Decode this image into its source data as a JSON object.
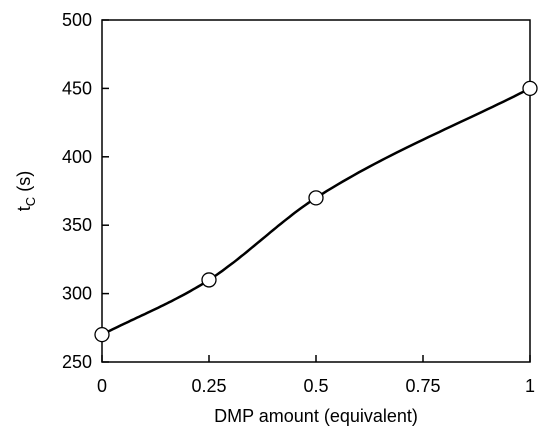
{
  "chart_data": {
    "type": "line",
    "title": "",
    "xlabel": "DMP amount (equivalent)",
    "ylabel_main": "t",
    "ylabel_sub": "C",
    "ylabel_unit": " (s)",
    "xlim": [
      0,
      1
    ],
    "ylim": [
      250,
      500
    ],
    "xticks": [
      0,
      0.25,
      0.5,
      0.75,
      1
    ],
    "xtick_labels": [
      "0",
      "0.25",
      "0.5",
      "0.75",
      "1"
    ],
    "yticks": [
      250,
      300,
      350,
      400,
      450,
      500
    ],
    "ytick_labels": [
      "250",
      "300",
      "350",
      "400",
      "450",
      "500"
    ],
    "grid": false,
    "legend": "none",
    "series": [
      {
        "x": [
          0,
          0.25,
          0.5,
          1
        ],
        "y": [
          270,
          310,
          370,
          450
        ],
        "marker": "open-circle",
        "line": "smooth"
      }
    ],
    "colors": {
      "line": "#000000",
      "marker_fill": "#ffffff",
      "axis": "#000000"
    }
  }
}
